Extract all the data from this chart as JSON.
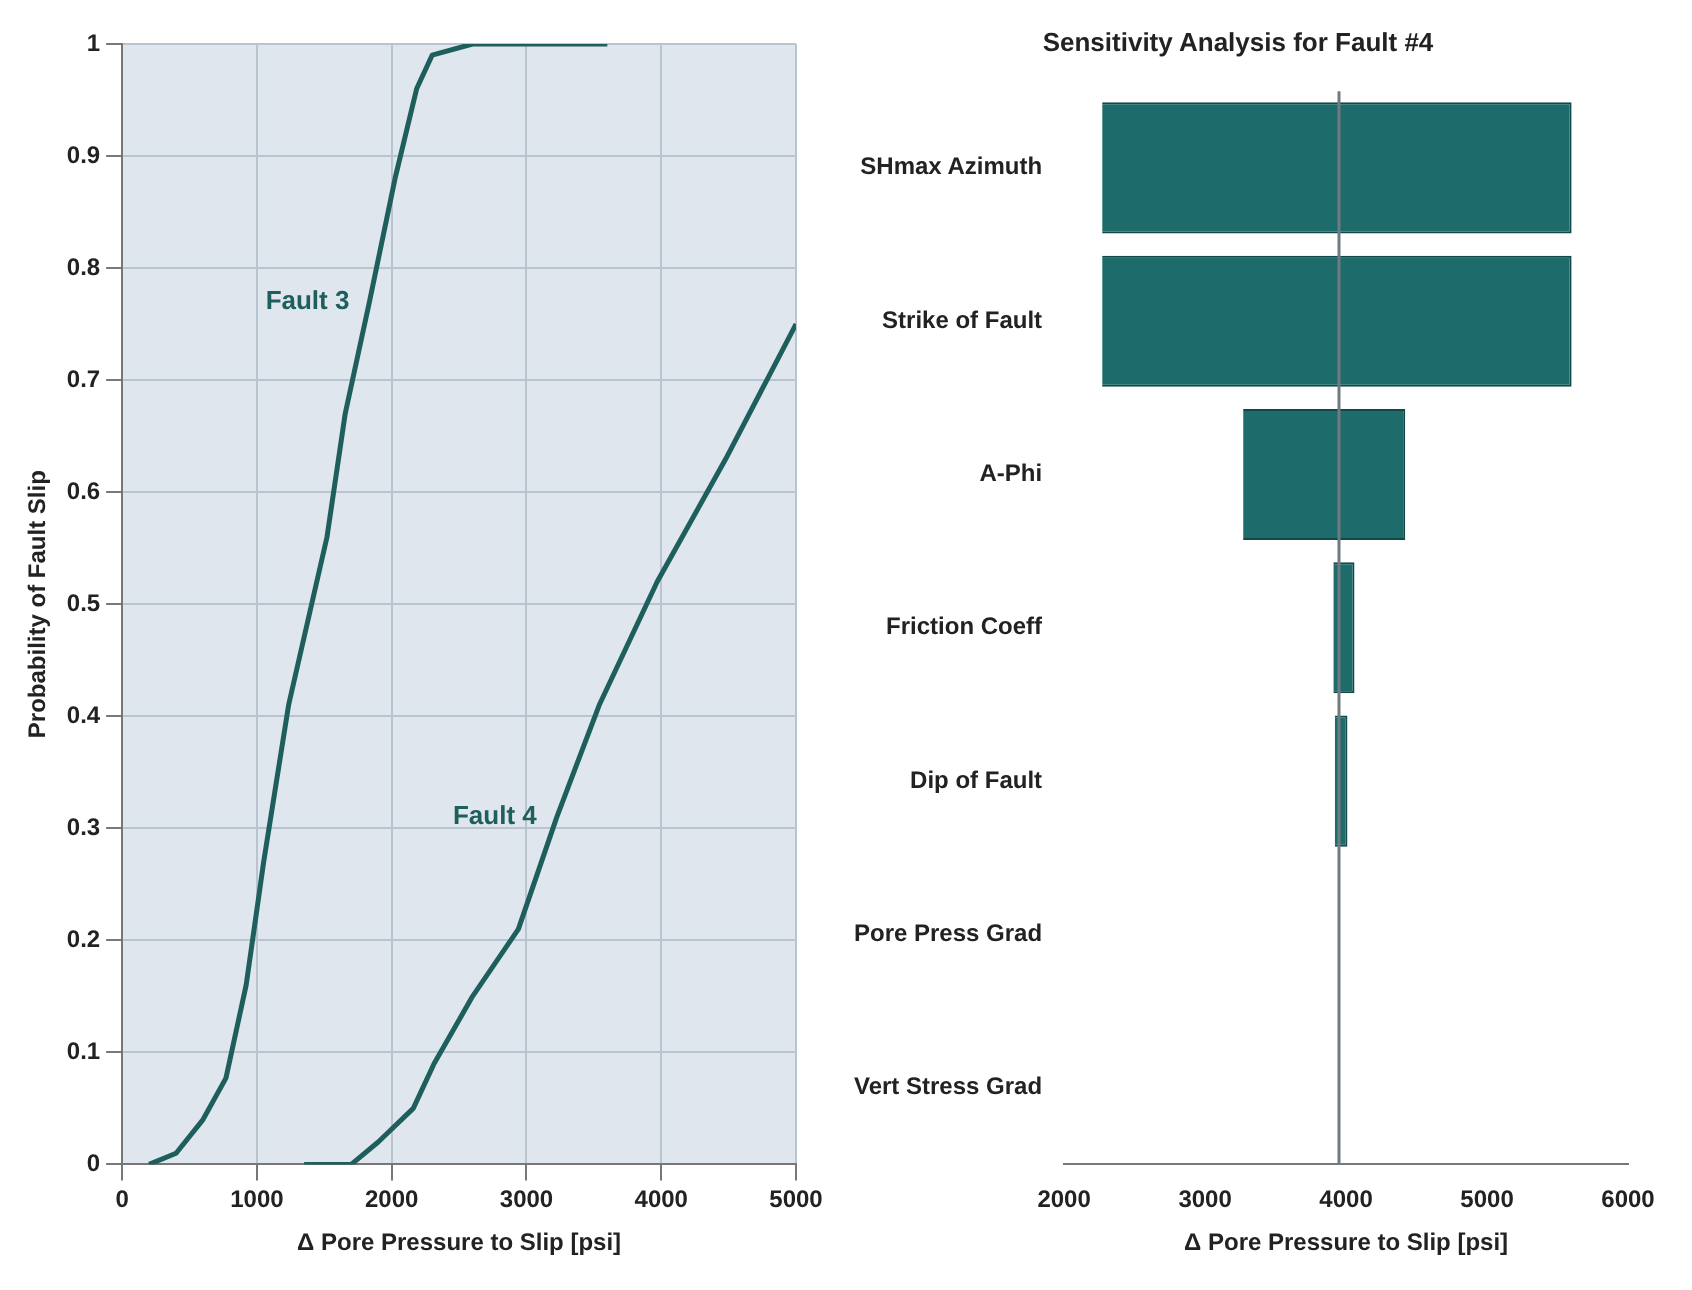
{
  "chart_data": [
    {
      "type": "line",
      "xlabel": "Δ Pore Pressure to Slip [psi]",
      "ylabel": "Probability of Fault Slip",
      "xlim": [
        0,
        5000
      ],
      "xticks": [
        0,
        1000,
        2000,
        3000,
        4000,
        5000
      ],
      "ylim": [
        0,
        1
      ],
      "yticks": [
        0,
        0.1,
        0.2,
        0.3,
        0.4,
        0.5,
        0.6,
        0.7,
        0.8,
        0.9,
        1
      ],
      "grid": true,
      "legend": false,
      "marker": "none",
      "series": [
        {
          "name": "Fault 3",
          "color": "#1e5e5c",
          "x": [
            200,
            400,
            600,
            770,
            920,
            1050,
            1235,
            1520,
            1655,
            1835,
            2025,
            2185,
            2300,
            2600,
            3600
          ],
          "values": [
            0,
            0.01,
            0.04,
            0.077,
            0.16,
            0.27,
            0.41,
            0.56,
            0.67,
            0.77,
            0.88,
            0.96,
            0.99,
            1,
            1
          ]
        },
        {
          "name": "Fault 4",
          "color": "#1e5e5c",
          "x": [
            1350,
            1700,
            1900,
            2160,
            2315,
            2600,
            2940,
            3225,
            3540,
            3970,
            4480,
            5000
          ],
          "values": [
            0,
            0,
            0.02,
            0.05,
            0.09,
            0.15,
            0.21,
            0.31,
            0.41,
            0.52,
            0.63,
            0.75
          ]
        }
      ]
    },
    {
      "type": "bar",
      "orientation": "horizontal",
      "title": "Sensitivity Analysis for Fault #4",
      "xlabel": "Δ Pore Pressure to Slip [psi]",
      "xlim": [
        2000,
        6000
      ],
      "xticks": [
        2000,
        3000,
        4000,
        5000,
        6000
      ],
      "grid": false,
      "legend": false,
      "categories": [
        "SHmax Azimuth",
        "Strike of Fault",
        "A-Phi",
        "Friction Coeff",
        "Dip of Fault",
        "Pore Press Grad",
        "Vert Stress Grad"
      ],
      "base": [
        2270,
        2270,
        3270,
        3910,
        3920,
        null,
        null
      ],
      "values": [
        3330,
        3330,
        1150,
        150,
        90,
        null,
        null
      ],
      "color": "#1d6b6b",
      "ref_lines": [
        {
          "axis": "x",
          "value": 3950,
          "color": "#707a80"
        }
      ]
    }
  ]
}
